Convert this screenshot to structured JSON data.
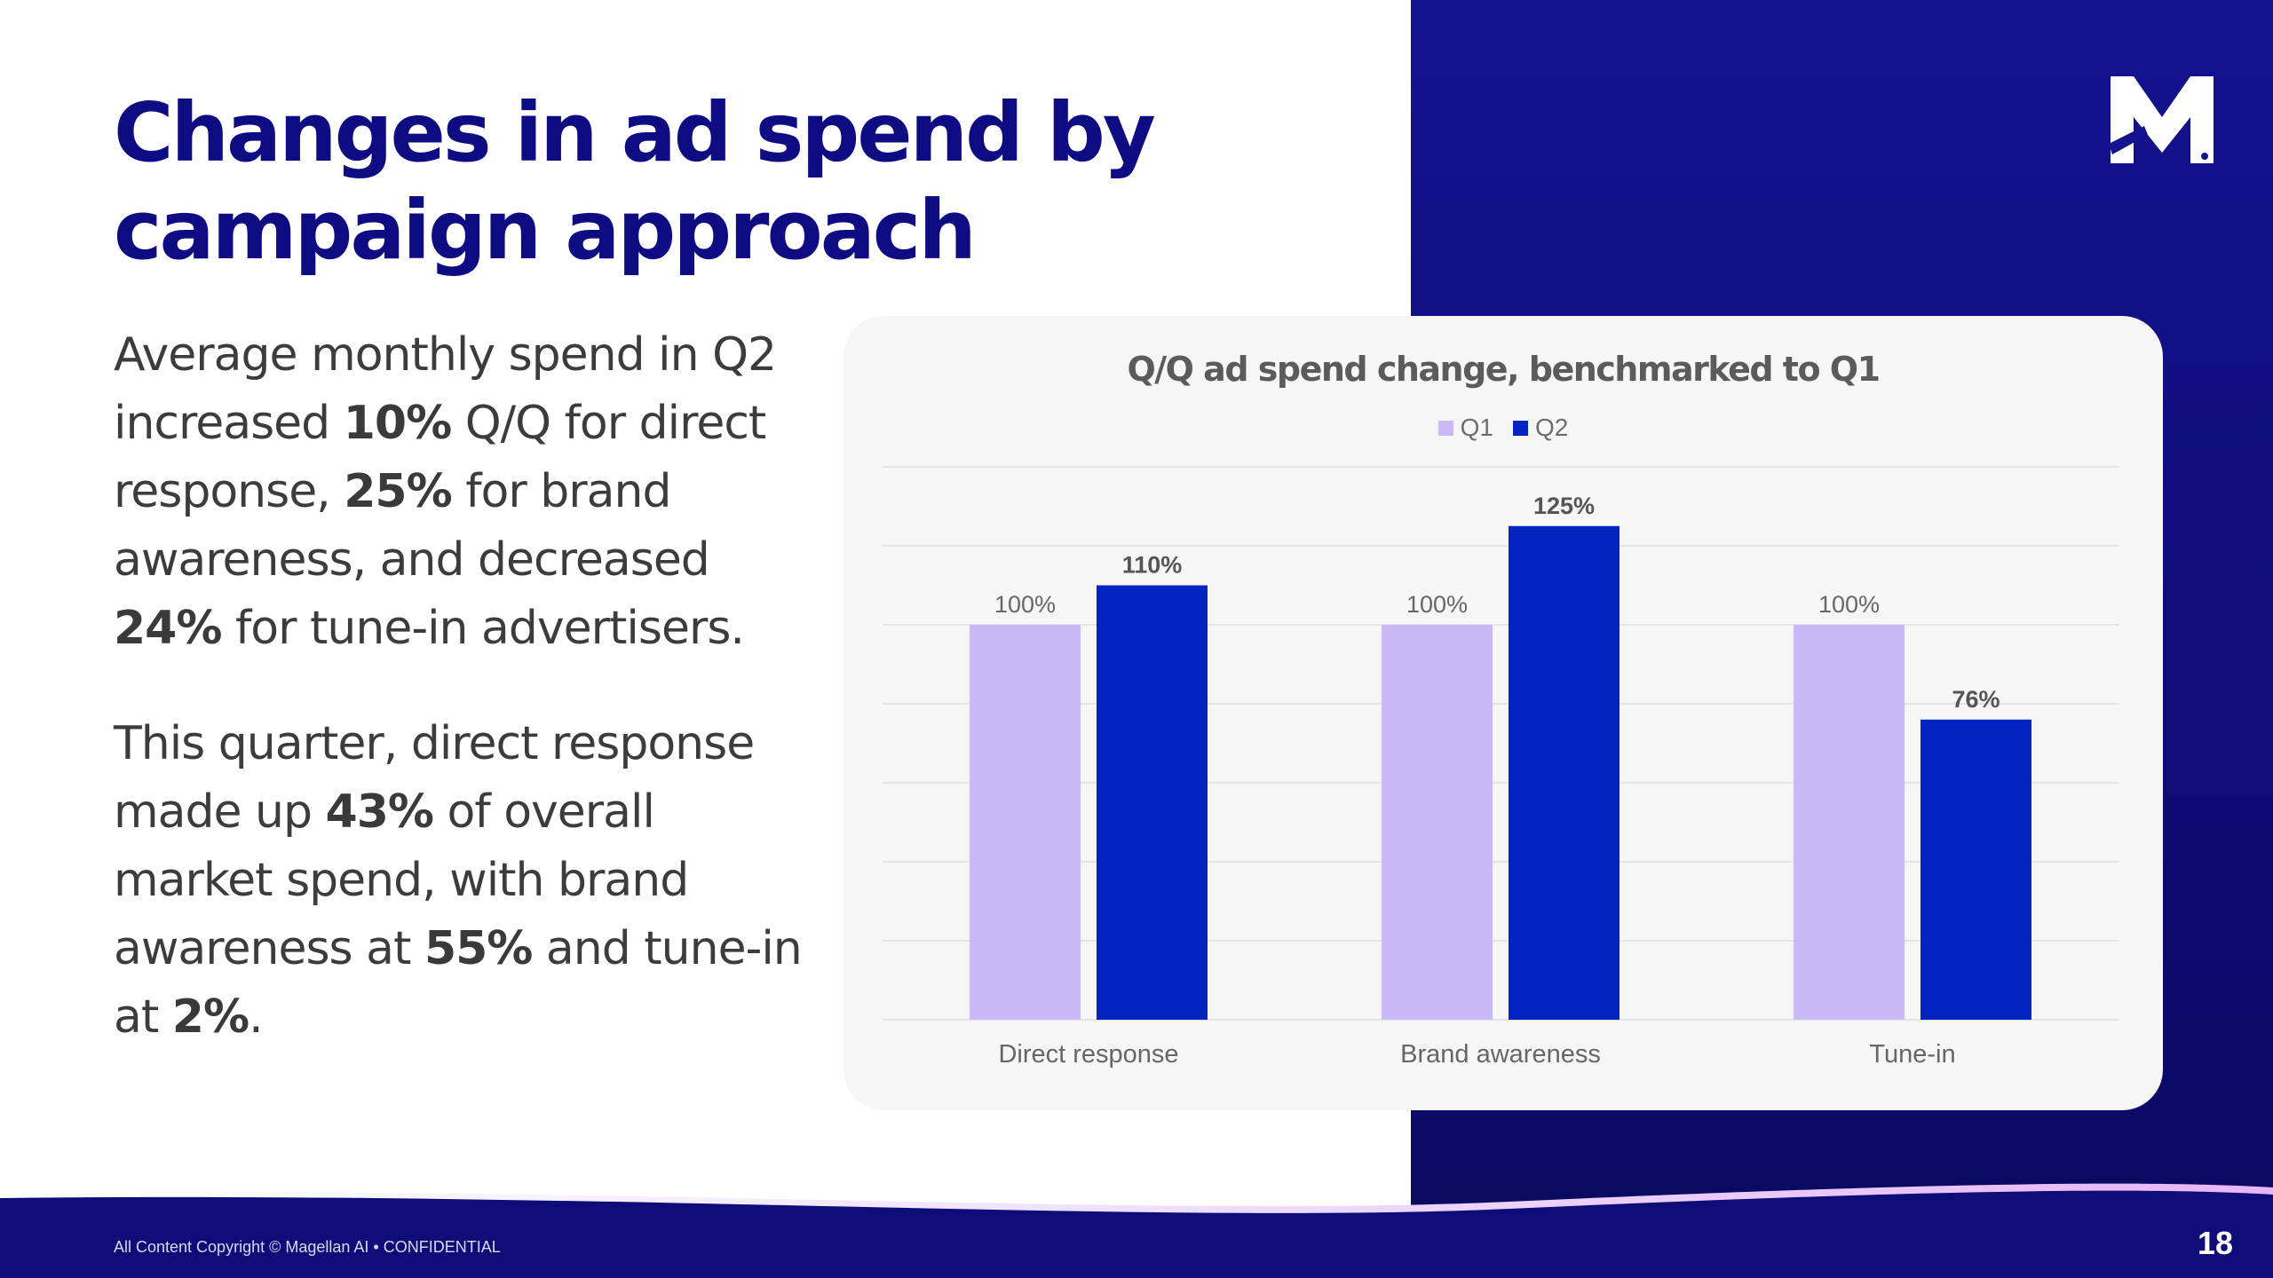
{
  "slide": {
    "title_line1": "Changes in ad spend by",
    "title_line2": "campaign approach",
    "p1": {
      "t1": "Average monthly spend in Q2 increased ",
      "b1": "10%",
      "t2": " Q/Q for direct response, ",
      "b2": "25%",
      "t3": " for brand awareness, and decreased ",
      "b3": "24%",
      "t4": " for tune-in advertisers."
    },
    "p2": {
      "t1": "This quarter, direct response made up ",
      "b1": "43%",
      "t2": " of overall market spend, with brand awareness at ",
      "b2": "55%",
      "t3": " and tune-in at ",
      "b3": "2%",
      "t4": "."
    },
    "footer": "All Content Copyright © Magellan AI • CONFIDENTIAL",
    "page_number": "18"
  },
  "colors": {
    "navy": "#0e0c83",
    "q1": "#c9baf5",
    "q2": "#0225c1"
  },
  "chart_data": {
    "type": "bar",
    "title": "Q/Q ad spend change, benchmarked to Q1",
    "categories": [
      "Direct response",
      "Brand awareness",
      "Tune-in"
    ],
    "series": [
      {
        "name": "Q1",
        "values": [
          100,
          100,
          100
        ],
        "labels": [
          "100%",
          "100%",
          "100%"
        ],
        "color": "#c9baf5"
      },
      {
        "name": "Q2",
        "values": [
          110,
          125,
          76
        ],
        "labels": [
          "110%",
          "125%",
          "76%"
        ],
        "color": "#0225c1"
      }
    ],
    "ylim": [
      0,
      140
    ],
    "grid": true,
    "legend_position": "top-center",
    "xlabel": "",
    "ylabel": ""
  }
}
